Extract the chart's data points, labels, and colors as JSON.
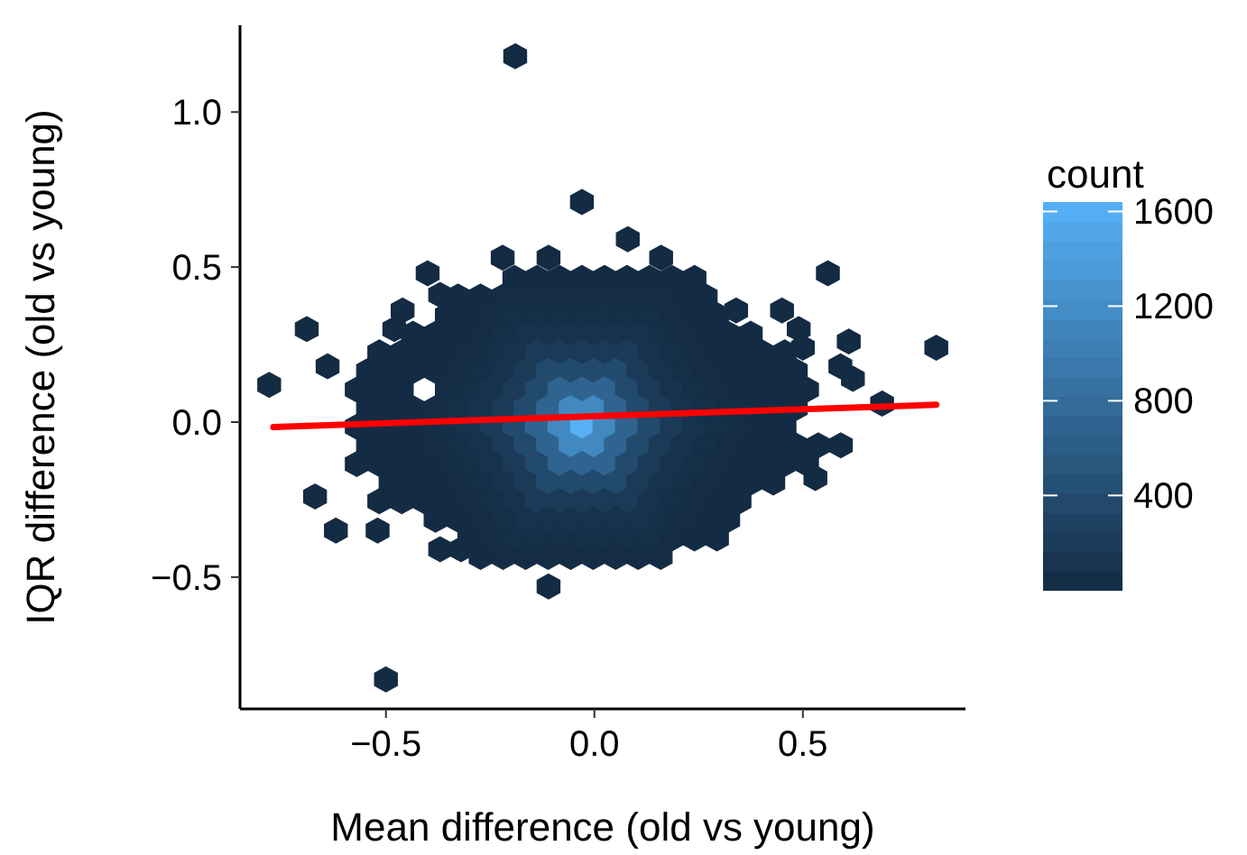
{
  "chart_data": {
    "type": "scatter",
    "xlabel": "Mean difference (old vs young)",
    "ylabel": "IQR difference (old vs young)",
    "clabel": "count",
    "xlim": [
      -0.85,
      0.89
    ],
    "ylim": [
      -0.925,
      1.28
    ],
    "xticks": [
      {
        "value": -0.5,
        "label": "−0.5"
      },
      {
        "value": 0,
        "label": "0.0"
      },
      {
        "value": 0.5,
        "label": "0.5"
      }
    ],
    "yticks": [
      {
        "value": -0.5,
        "label": "−0.5"
      },
      {
        "value": 0,
        "label": "0.0"
      },
      {
        "value": 0.5,
        "label": "0.5"
      },
      {
        "value": 1,
        "label": "1.0"
      }
    ],
    "clim": [
      1,
      1640
    ],
    "cticks": [
      400,
      800,
      1200,
      1600
    ],
    "series": [
      {
        "x": [
          -0.192,
          -0.138,
          -0.084,
          -0.03,
          0.024,
          0.078,
          0.132,
          0.186,
          0.24
        ],
        "values": [
          0.465,
          0.465,
          0.465,
          0.465,
          0.465,
          0.465,
          0.465,
          0.465,
          0.465
        ],
        "cvalues": [
          12,
          12,
          12,
          12,
          12,
          12,
          12,
          12,
          7
        ],
        "colors": [
          "#132c44",
          "#132c44",
          "#132c44",
          "#132c44",
          "#132c44",
          "#132c44",
          "#132c44",
          "#132c44",
          "#132b44"
        ]
      },
      {
        "x": [
          -0.327,
          -0.273,
          -0.219,
          -0.165,
          -0.111,
          -0.057,
          -0.003,
          0.051,
          0.105,
          0.159,
          0.213,
          0.267
        ],
        "values": [
          0.405,
          0.405,
          0.405,
          0.405,
          0.405,
          0.405,
          0.405,
          0.405,
          0.405,
          0.405,
          0.405,
          0.405
        ],
        "cvalues": [
          7,
          12,
          22,
          22,
          22,
          22,
          22,
          22,
          22,
          22,
          12,
          7
        ],
        "colors": [
          "#132b44",
          "#132c44",
          "#142d45",
          "#142d45",
          "#142d45",
          "#142d45",
          "#142d45",
          "#142d45",
          "#142d45",
          "#142d45",
          "#132c44",
          "#132b44"
        ]
      },
      {
        "x": [
          -0.354,
          -0.3,
          -0.246,
          -0.192,
          -0.138,
          -0.084,
          -0.03,
          0.024,
          0.078,
          0.132,
          0.186,
          0.24,
          0.294
        ],
        "values": [
          0.345,
          0.345,
          0.345,
          0.345,
          0.345,
          0.345,
          0.345,
          0.345,
          0.345,
          0.345,
          0.345,
          0.345,
          0.345
        ],
        "cvalues": [
          7,
          12,
          22,
          45,
          45,
          45,
          45,
          45,
          45,
          45,
          22,
          12,
          7
        ],
        "colors": [
          "#132b44",
          "#132c44",
          "#142d45",
          "#152f48",
          "#152f48",
          "#152f48",
          "#152f48",
          "#152f48",
          "#152f48",
          "#152f48",
          "#142d45",
          "#132c44",
          "#132b44"
        ]
      },
      {
        "x": [
          -0.435,
          -0.381,
          -0.327,
          -0.273,
          -0.219,
          -0.165,
          -0.111,
          -0.057,
          -0.003,
          0.051,
          0.105,
          0.159,
          0.213,
          0.267,
          0.321,
          0.375
        ],
        "values": [
          0.285,
          0.285,
          0.285,
          0.285,
          0.285,
          0.285,
          0.285,
          0.285,
          0.285,
          0.285,
          0.285,
          0.285,
          0.285,
          0.285,
          0.285,
          0.285
        ],
        "cvalues": [
          4,
          7,
          12,
          22,
          45,
          90,
          90,
          90,
          90,
          90,
          90,
          45,
          22,
          12,
          7,
          4
        ],
        "colors": [
          "#132b43",
          "#132b44",
          "#132c44",
          "#142d45",
          "#152f48",
          "#17324d",
          "#17324d",
          "#17324d",
          "#17324d",
          "#17324d",
          "#17324d",
          "#152f48",
          "#142d45",
          "#132c44",
          "#132b44",
          "#132b43"
        ]
      },
      {
        "x": [
          -0.516,
          -0.462,
          -0.408,
          -0.354,
          -0.3,
          -0.246,
          -0.192,
          -0.138,
          -0.084,
          -0.03,
          0.024,
          0.078,
          0.132,
          0.186,
          0.24,
          0.294,
          0.348,
          0.402,
          0.456
        ],
        "values": [
          0.225,
          0.225,
          0.225,
          0.225,
          0.225,
          0.225,
          0.225,
          0.225,
          0.225,
          0.225,
          0.225,
          0.225,
          0.225,
          0.225,
          0.225,
          0.225,
          0.225,
          0.225,
          0.225
        ],
        "cvalues": [
          2,
          4,
          7,
          12,
          22,
          45,
          90,
          190,
          190,
          190,
          190,
          190,
          90,
          45,
          22,
          12,
          7,
          4,
          2
        ],
        "colors": [
          "#132b43",
          "#132b43",
          "#132b44",
          "#132c44",
          "#142d45",
          "#152f48",
          "#17324d",
          "#1b3b58",
          "#1b3b58",
          "#1b3b58",
          "#1b3b58",
          "#1b3b58",
          "#17324d",
          "#152f48",
          "#142d45",
          "#132c44",
          "#132b44",
          "#132b43",
          "#132b43"
        ]
      },
      {
        "x": [
          -0.543,
          -0.489,
          -0.435,
          -0.381,
          -0.327,
          -0.273,
          -0.219,
          -0.165,
          -0.111,
          -0.057,
          -0.003,
          0.051,
          0.105,
          0.159,
          0.213,
          0.267,
          0.321,
          0.375,
          0.429,
          0.483
        ],
        "values": [
          0.165,
          0.165,
          0.165,
          0.165,
          0.165,
          0.165,
          0.165,
          0.165,
          0.165,
          0.165,
          0.165,
          0.165,
          0.165,
          0.165,
          0.165,
          0.165,
          0.165,
          0.165,
          0.165,
          0.165
        ],
        "cvalues": [
          2,
          4,
          7,
          12,
          22,
          45,
          90,
          190,
          380,
          380,
          380,
          380,
          190,
          90,
          45,
          22,
          12,
          7,
          4,
          2
        ],
        "colors": [
          "#132b43",
          "#132b43",
          "#132b44",
          "#132c44",
          "#142d45",
          "#152f48",
          "#17324d",
          "#1b3b58",
          "#234a6d",
          "#234a6d",
          "#234a6d",
          "#234a6d",
          "#1b3b58",
          "#17324d",
          "#152f48",
          "#142d45",
          "#132c44",
          "#132b44",
          "#132b43",
          "#132b43"
        ]
      },
      {
        "x": [
          -0.57,
          -0.516,
          -0.462,
          -0.354,
          -0.3,
          -0.246,
          -0.192,
          -0.138,
          -0.084,
          -0.03,
          0.024,
          0.078,
          0.132,
          0.186,
          0.24,
          0.294,
          0.348,
          0.402,
          0.456,
          0.51
        ],
        "values": [
          0.105,
          0.105,
          0.105,
          0.105,
          0.105,
          0.105,
          0.105,
          0.105,
          0.105,
          0.105,
          0.105,
          0.105,
          0.105,
          0.105,
          0.105,
          0.105,
          0.105,
          0.105,
          0.105,
          0.105
        ],
        "cvalues": [
          2,
          4,
          7,
          22,
          45,
          90,
          190,
          380,
          700,
          700,
          700,
          380,
          190,
          90,
          45,
          22,
          12,
          7,
          4,
          2
        ],
        "colors": [
          "#132b43",
          "#132b43",
          "#132b44",
          "#142d45",
          "#152f48",
          "#17324d",
          "#1b3b58",
          "#234a6d",
          "#306490",
          "#306490",
          "#306490",
          "#234a6d",
          "#1b3b58",
          "#17324d",
          "#152f48",
          "#142d45",
          "#132c44",
          "#132b44",
          "#132b43",
          "#132b43"
        ]
      },
      {
        "x": [
          -0.543,
          -0.489,
          -0.435,
          -0.381,
          -0.327,
          -0.273,
          -0.219,
          -0.165,
          -0.111,
          -0.057,
          -0.003,
          0.051,
          0.105,
          0.159,
          0.213,
          0.267,
          0.321,
          0.375,
          0.429,
          0.483
        ],
        "values": [
          0.045,
          0.045,
          0.045,
          0.045,
          0.045,
          0.045,
          0.045,
          0.045,
          0.045,
          0.045,
          0.045,
          0.045,
          0.045,
          0.045,
          0.045,
          0.045,
          0.045,
          0.045,
          0.045,
          0.045
        ],
        "cvalues": [
          4,
          7,
          12,
          22,
          45,
          90,
          190,
          380,
          700,
          1150,
          1150,
          700,
          380,
          190,
          90,
          45,
          22,
          12,
          7,
          4
        ],
        "colors": [
          "#132b43",
          "#132b44",
          "#132c44",
          "#142d45",
          "#152f48",
          "#17324d",
          "#1b3b58",
          "#234a6d",
          "#306490",
          "#4289c1",
          "#4289c1",
          "#306490",
          "#234a6d",
          "#1b3b58",
          "#17324d",
          "#152f48",
          "#142d45",
          "#132c44",
          "#132b44",
          "#132b43"
        ]
      },
      {
        "x": [
          -0.57,
          -0.516,
          -0.462,
          -0.408,
          -0.354,
          -0.3,
          -0.246,
          -0.192,
          -0.138,
          -0.084,
          -0.03,
          0.024,
          0.078,
          0.132,
          0.186,
          0.24,
          0.294,
          0.348,
          0.402,
          0.456
        ],
        "values": [
          -0.015,
          -0.015,
          -0.015,
          -0.015,
          -0.015,
          -0.015,
          -0.015,
          -0.015,
          -0.015,
          -0.015,
          -0.015,
          -0.015,
          -0.015,
          -0.015,
          -0.015,
          -0.015,
          -0.015,
          -0.015,
          -0.015,
          -0.015
        ],
        "cvalues": [
          4,
          7,
          12,
          22,
          45,
          90,
          190,
          380,
          700,
          1150,
          1640,
          1150,
          700,
          380,
          190,
          90,
          45,
          22,
          12,
          7
        ],
        "colors": [
          "#132b43",
          "#132b44",
          "#132c44",
          "#142d45",
          "#152f48",
          "#17324d",
          "#1b3b58",
          "#234a6d",
          "#306490",
          "#4289c1",
          "#56b1f7",
          "#4289c1",
          "#306490",
          "#234a6d",
          "#1b3b58",
          "#17324d",
          "#152f48",
          "#142d45",
          "#132c44",
          "#132b44"
        ]
      },
      {
        "x": [
          -0.543,
          -0.489,
          -0.435,
          -0.381,
          -0.327,
          -0.273,
          -0.219,
          -0.165,
          -0.111,
          -0.057,
          -0.003,
          0.051,
          0.105,
          0.159,
          0.213,
          0.267,
          0.321,
          0.375,
          0.429,
          0.483,
          0.537,
          0.591
        ],
        "values": [
          -0.075,
          -0.075,
          -0.075,
          -0.075,
          -0.075,
          -0.075,
          -0.075,
          -0.075,
          -0.075,
          -0.075,
          -0.075,
          -0.075,
          -0.075,
          -0.075,
          -0.075,
          -0.075,
          -0.075,
          -0.075,
          -0.075,
          -0.075,
          -0.075,
          -0.075
        ],
        "cvalues": [
          4,
          7,
          12,
          22,
          45,
          90,
          190,
          380,
          700,
          1150,
          1150,
          700,
          380,
          190,
          90,
          45,
          22,
          12,
          7,
          4,
          2,
          2
        ],
        "colors": [
          "#132b43",
          "#132b44",
          "#132c44",
          "#142d45",
          "#152f48",
          "#17324d",
          "#1b3b58",
          "#234a6d",
          "#306490",
          "#4289c1",
          "#4289c1",
          "#306490",
          "#234a6d",
          "#1b3b58",
          "#17324d",
          "#152f48",
          "#142d45",
          "#132c44",
          "#132b44",
          "#132b43",
          "#132b43",
          "#132b43"
        ]
      },
      {
        "x": [
          -0.57,
          -0.516,
          -0.462,
          -0.408,
          -0.354,
          -0.3,
          -0.246,
          -0.192,
          -0.138,
          -0.084,
          -0.03,
          0.024,
          0.078,
          0.132,
          0.186,
          0.24,
          0.294,
          0.348,
          0.402,
          0.456,
          0.51
        ],
        "values": [
          -0.135,
          -0.135,
          -0.135,
          -0.135,
          -0.135,
          -0.135,
          -0.135,
          -0.135,
          -0.135,
          -0.135,
          -0.135,
          -0.135,
          -0.135,
          -0.135,
          -0.135,
          -0.135,
          -0.135,
          -0.135,
          -0.135,
          -0.135,
          -0.135
        ],
        "cvalues": [
          2,
          4,
          7,
          12,
          22,
          45,
          90,
          190,
          380,
          700,
          700,
          700,
          380,
          190,
          90,
          45,
          22,
          12,
          7,
          4,
          2
        ],
        "colors": [
          "#132b43",
          "#132b43",
          "#132b44",
          "#132c44",
          "#142d45",
          "#152f48",
          "#17324d",
          "#1b3b58",
          "#234a6d",
          "#306490",
          "#306490",
          "#306490",
          "#234a6d",
          "#1b3b58",
          "#17324d",
          "#152f48",
          "#142d45",
          "#132c44",
          "#132b44",
          "#132b43",
          "#132b43"
        ]
      },
      {
        "x": [
          -0.489,
          -0.435,
          -0.381,
          -0.327,
          -0.273,
          -0.219,
          -0.165,
          -0.111,
          -0.057,
          -0.003,
          0.051,
          0.105,
          0.159,
          0.213,
          0.267,
          0.321,
          0.375,
          0.429
        ],
        "values": [
          -0.195,
          -0.195,
          -0.195,
          -0.195,
          -0.195,
          -0.195,
          -0.195,
          -0.195,
          -0.195,
          -0.195,
          -0.195,
          -0.195,
          -0.195,
          -0.195,
          -0.195,
          -0.195,
          -0.195,
          -0.195
        ],
        "cvalues": [
          4,
          7,
          12,
          22,
          45,
          90,
          190,
          380,
          380,
          380,
          380,
          190,
          90,
          45,
          22,
          12,
          7,
          4
        ],
        "colors": [
          "#132b43",
          "#132b44",
          "#132c44",
          "#142d45",
          "#152f48",
          "#17324d",
          "#1b3b58",
          "#234a6d",
          "#234a6d",
          "#234a6d",
          "#234a6d",
          "#1b3b58",
          "#17324d",
          "#152f48",
          "#142d45",
          "#132c44",
          "#132b44",
          "#132b43"
        ]
      },
      {
        "x": [
          -0.516,
          -0.462,
          -0.408,
          -0.354,
          -0.3,
          -0.246,
          -0.192,
          -0.138,
          -0.084,
          -0.03,
          0.024,
          0.078,
          0.132,
          0.186,
          0.24,
          0.294,
          0.348
        ],
        "values": [
          -0.255,
          -0.255,
          -0.255,
          -0.255,
          -0.255,
          -0.255,
          -0.255,
          -0.255,
          -0.255,
          -0.255,
          -0.255,
          -0.255,
          -0.255,
          -0.255,
          -0.255,
          -0.255,
          -0.255
        ],
        "cvalues": [
          2,
          4,
          7,
          12,
          22,
          45,
          90,
          190,
          190,
          190,
          190,
          190,
          90,
          45,
          22,
          12,
          7
        ],
        "colors": [
          "#132b43",
          "#132b43",
          "#132b44",
          "#132c44",
          "#142d45",
          "#152f48",
          "#17324d",
          "#1b3b58",
          "#1b3b58",
          "#1b3b58",
          "#1b3b58",
          "#1b3b58",
          "#17324d",
          "#152f48",
          "#142d45",
          "#132c44",
          "#132b44"
        ]
      },
      {
        "x": [
          -0.381,
          -0.327,
          -0.273,
          -0.219,
          -0.165,
          -0.111,
          -0.057,
          -0.003,
          0.051,
          0.105,
          0.159,
          0.213,
          0.267,
          0.321
        ],
        "values": [
          -0.315,
          -0.315,
          -0.315,
          -0.315,
          -0.315,
          -0.315,
          -0.315,
          -0.315,
          -0.315,
          -0.315,
          -0.315,
          -0.315,
          -0.315,
          -0.315
        ],
        "cvalues": [
          7,
          12,
          22,
          45,
          90,
          90,
          90,
          90,
          90,
          90,
          45,
          22,
          12,
          7
        ],
        "colors": [
          "#132b44",
          "#132c44",
          "#142d45",
          "#152f48",
          "#17324d",
          "#17324d",
          "#17324d",
          "#17324d",
          "#17324d",
          "#17324d",
          "#152f48",
          "#142d45",
          "#132c44",
          "#132b44"
        ]
      },
      {
        "x": [
          -0.3,
          -0.246,
          -0.192,
          -0.138,
          -0.084,
          -0.03,
          0.024,
          0.078,
          0.132,
          0.186,
          0.24,
          0.294
        ],
        "values": [
          -0.375,
          -0.375,
          -0.375,
          -0.375,
          -0.375,
          -0.375,
          -0.375,
          -0.375,
          -0.375,
          -0.375,
          -0.375,
          -0.375
        ],
        "cvalues": [
          12,
          22,
          45,
          45,
          45,
          45,
          45,
          45,
          45,
          22,
          12,
          7
        ],
        "colors": [
          "#132c44",
          "#142d45",
          "#152f48",
          "#152f48",
          "#152f48",
          "#152f48",
          "#152f48",
          "#152f48",
          "#152f48",
          "#142d45",
          "#132c44",
          "#132b44"
        ]
      },
      {
        "x": [
          -0.273,
          -0.219,
          -0.165,
          -0.111,
          -0.057,
          -0.003,
          0.051,
          0.105,
          0.159
        ],
        "values": [
          -0.435,
          -0.435,
          -0.435,
          -0.435,
          -0.435,
          -0.435,
          -0.435,
          -0.435,
          -0.435
        ],
        "cvalues": [
          12,
          22,
          22,
          22,
          22,
          22,
          22,
          22,
          22
        ],
        "colors": [
          "#132c44",
          "#142d45",
          "#142d45",
          "#142d45",
          "#142d45",
          "#142d45",
          "#142d45",
          "#142d45",
          "#142d45"
        ]
      },
      {
        "color": "#132b43",
        "x": [
          -0.03,
          0.08,
          -0.22,
          -0.11,
          0.16,
          -0.4,
          -0.37,
          0.56,
          -0.69,
          -0.46,
          -0.48,
          -0.64,
          -0.78,
          0.45,
          0.49,
          0.5,
          0.61,
          0.59,
          0.62,
          0.82,
          0.69,
          0.53,
          -0.67,
          -0.62,
          -0.52,
          -0.37,
          -0.32,
          -0.11,
          -0.5,
          -0.19,
          0.34
        ],
        "values": [
          0.71,
          0.59,
          0.53,
          0.53,
          0.53,
          0.48,
          0.41,
          0.48,
          0.3,
          0.36,
          0.3,
          0.18,
          0.12,
          0.36,
          0.3,
          0.24,
          0.26,
          0.18,
          0.14,
          0.24,
          0.06,
          -0.18,
          -0.24,
          -0.35,
          -0.35,
          -0.41,
          -0.41,
          -0.53,
          -0.83,
          1.18,
          0.36
        ],
        "cvalues": [
          1,
          1,
          1,
          1,
          1,
          1,
          1,
          1,
          1,
          1,
          1,
          1,
          1,
          1,
          1,
          1,
          1,
          1,
          1,
          1,
          1,
          1,
          1,
          1,
          1,
          1,
          1,
          1,
          1,
          1,
          1
        ]
      },
      {
        "type": "line",
        "color": "#ff0000",
        "x": [
          -0.77,
          0.82
        ],
        "values": [
          -0.016,
          0.056
        ]
      }
    ]
  }
}
